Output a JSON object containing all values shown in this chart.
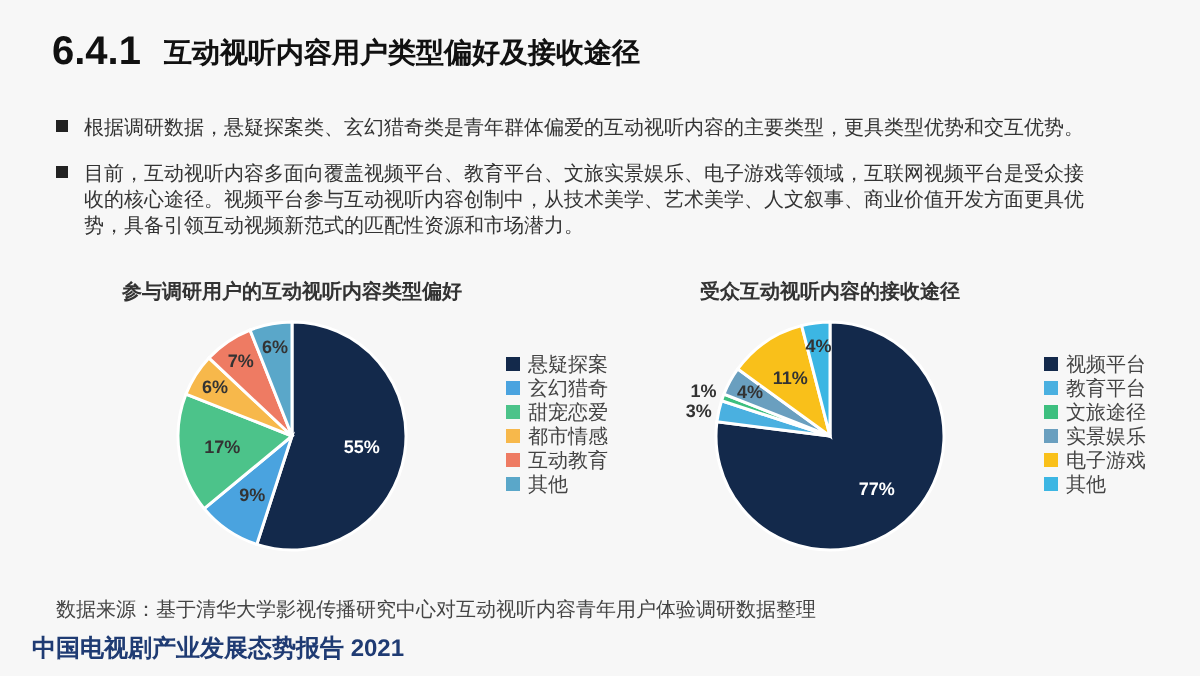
{
  "chart_data": [
    {
      "type": "pie",
      "title": "参与调研用户的互动视听内容类型偏好",
      "categories": [
        "悬疑探案",
        "玄幻猎奇",
        "甜宠恋爱",
        "都市情感",
        "互动教育",
        "其他"
      ],
      "values": [
        55,
        9,
        17,
        6,
        7,
        6
      ],
      "value_labels": [
        "55%",
        "9%",
        "17%",
        "6%",
        "7%",
        "6%"
      ],
      "colors": [
        "#13294b",
        "#4aa3df",
        "#4cc38a",
        "#f7b84b",
        "#ee7b63",
        "#5aa7c9"
      ],
      "legend": "right",
      "annotations": [
        "6.4.1",
        "互动视听内容用户类型偏好及接收途径",
        "根据调研数据，悬疑探案类、玄幻猎奇类是青年群体偏爱的互动视听内容的主要类型，更具类型优势和交互优势。",
        "目前，互动视听内容多面向覆盖视频平台、教育平台、文旅实景娱乐、电子游戏等领域，互联网视频平台是受众接收的核心途径。视频平台参与互动视听内容创制中，从技术美学、艺术美学、人文叙事、商业价值开发方面更具优势，具备引领互动视频新范式的匹配性资源和市场潜力。",
        "数据来源：基于清华大学影视传播研究中心对互动视听内容青年用户体验调研数据整理",
        "中国电视剧产业发展态势报告 2021"
      ]
    },
    {
      "type": "pie",
      "title": "受众互动视听内容的接收途径",
      "categories": [
        "视频平台",
        "教育平台",
        "文旅途径",
        "实景娱乐",
        "电子游戏",
        "其他"
      ],
      "values": [
        77,
        3,
        1,
        4,
        11,
        4
      ],
      "value_labels": [
        "77%",
        "3%",
        "1%",
        "4%",
        "11%",
        "4%"
      ],
      "colors": [
        "#13294b",
        "#4ab0e0",
        "#3dbf7f",
        "#6a9fbf",
        "#f9c01a",
        "#3cb6e3"
      ],
      "legend": "right"
    }
  ]
}
